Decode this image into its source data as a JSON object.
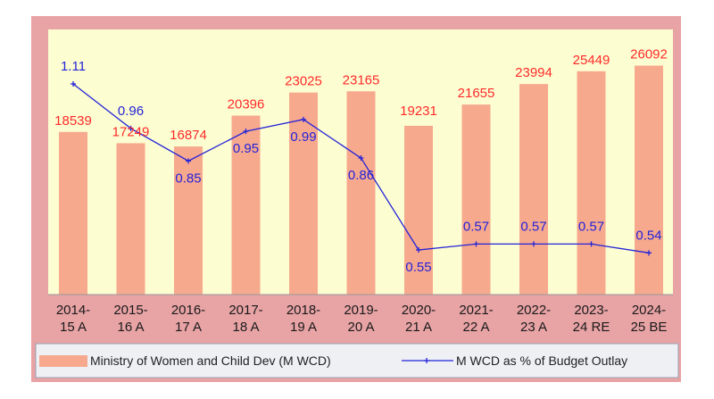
{
  "chart_data": {
    "type": "bar",
    "categories": [
      [
        "2014-",
        "15 A"
      ],
      [
        "2015-",
        "16 A"
      ],
      [
        "2016-",
        "17 A"
      ],
      [
        "2017-",
        "18 A"
      ],
      [
        "2018-",
        "19 A"
      ],
      [
        "2019-",
        "20 A"
      ],
      [
        "2020-",
        "21 A"
      ],
      [
        "2021-",
        "22 A"
      ],
      [
        "2022-",
        "23 A"
      ],
      [
        "2023-",
        "24 RE"
      ],
      [
        "2024-",
        "25 BE"
      ]
    ],
    "series": [
      {
        "name": "Ministry of Women and Child Dev (M WCD)",
        "type": "bar",
        "color": "#f7a98e",
        "label_color": "#ff2a2a",
        "values": [
          18539,
          17249,
          16874,
          20396,
          23025,
          23165,
          19231,
          21655,
          23994,
          25449,
          26092
        ]
      },
      {
        "name": "M WCD as % of Budget Outlay",
        "type": "line",
        "axis": "secondary",
        "color": "#2323d8",
        "values": [
          1.11,
          0.96,
          0.85,
          0.95,
          0.99,
          0.86,
          0.55,
          0.57,
          0.57,
          0.57,
          0.54
        ]
      }
    ],
    "legend_position": "bottom",
    "grid": false,
    "colors": {
      "frame": "#e8a3a5",
      "plot_background": "#fdfdd2",
      "legend_background": "#eef0f4"
    }
  }
}
